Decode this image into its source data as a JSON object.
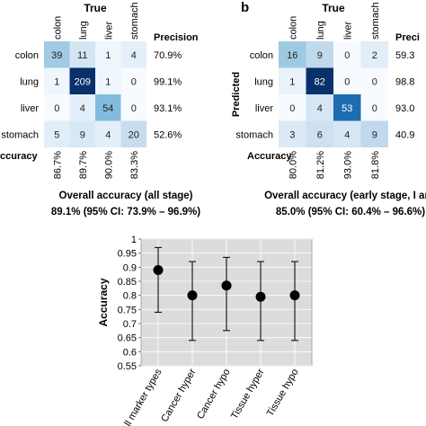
{
  "chart_data": [
    {
      "type": "heatmap",
      "title": "True",
      "panel_letter": "",
      "ylabel": "",
      "columns": [
        "colon",
        "lung",
        "liver",
        "stomach"
      ],
      "rows": [
        "colon",
        "lung",
        "liver",
        "stomach"
      ],
      "values": [
        [
          39,
          11,
          1,
          4
        ],
        [
          1,
          209,
          1,
          0
        ],
        [
          0,
          4,
          54,
          0
        ],
        [
          5,
          9,
          4,
          20
        ]
      ],
      "precision_label": "Precision",
      "precision": [
        "70.9%",
        "99.1%",
        "93.1%",
        "52.6%"
      ],
      "accuracy_label": "ccuracy",
      "accuracy": [
        "86.7%",
        "89.7%",
        "90.0%",
        "83.3%"
      ],
      "caption": [
        "Overall accuracy (all stage)",
        "89.1% (95% CI: 73.9% – 96.9%)"
      ]
    },
    {
      "type": "heatmap",
      "title": "True",
      "panel_letter": "b",
      "ylabel": "Predicted",
      "columns": [
        "colon",
        "lung",
        "liver",
        "stomach"
      ],
      "rows": [
        "colon",
        "lung",
        "liver",
        "stomach"
      ],
      "values": [
        [
          16,
          9,
          0,
          2
        ],
        [
          1,
          82,
          0,
          0
        ],
        [
          0,
          4,
          53,
          0
        ],
        [
          3,
          6,
          4,
          9
        ]
      ],
      "precision_label": "Preci",
      "precision": [
        "59.3",
        "98.8",
        "93.0",
        "40.9"
      ],
      "accuracy_label": "Accuracy",
      "accuracy": [
        "80.0%",
        "81.2%",
        "93.0%",
        "81.8%"
      ],
      "caption": [
        "Overall accuracy (early stage, I anc",
        "85.0% (95% CI: 60.4% – 96.6%)"
      ]
    },
    {
      "type": "scatter",
      "title": "",
      "xlabel": "",
      "ylabel": "Accuracy",
      "categories": [
        "All marker types",
        "Cancer hyper",
        "Cancer hypo",
        "Tissue hyper",
        "Tissue hypo"
      ],
      "values": [
        0.89,
        0.8,
        0.835,
        0.795,
        0.8
      ],
      "ci_low": [
        0.74,
        0.64,
        0.675,
        0.64,
        0.64
      ],
      "ci_high": [
        0.97,
        0.92,
        0.935,
        0.92,
        0.92
      ],
      "ylim": [
        0.55,
        1
      ],
      "yticks": [
        "0.55",
        "0.6",
        "0.65",
        "0.7",
        "0.75",
        "0.8",
        "0.85",
        "0.9",
        "0.95",
        "1"
      ],
      "grid": true
    }
  ]
}
